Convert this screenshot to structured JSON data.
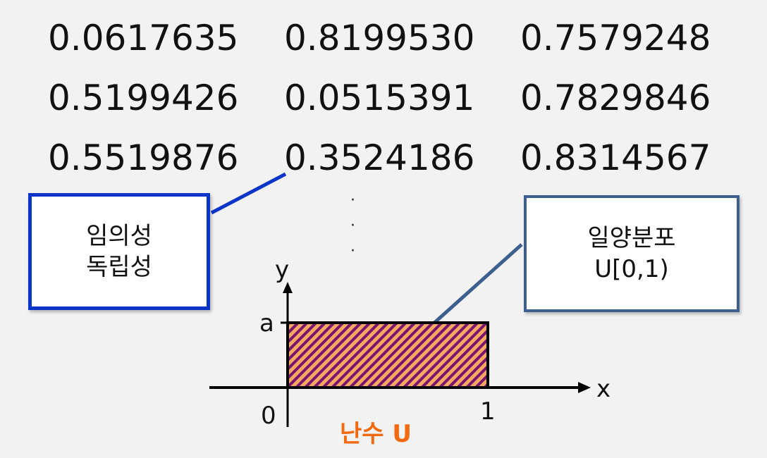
{
  "numbers": [
    [
      "0.0617635",
      "0.8199530",
      "0.7579248"
    ],
    [
      "0.5199426",
      "0.0515391",
      "0.7829846"
    ],
    [
      "0.5519876",
      "0.3524186",
      "0.8314567"
    ]
  ],
  "ellipsis": "·",
  "left_box": {
    "line1": "임의성",
    "line2": "독립성"
  },
  "right_box": {
    "line1": "일양분포",
    "line2": "U[0,1)"
  },
  "axes": {
    "y_label": "y",
    "x_label": "x",
    "a_label": "a",
    "zero_label": "0",
    "one_label": "1"
  },
  "caption": "난수 U",
  "colors": {
    "left_border": "#0a35c8",
    "right_border": "#3d5f8e",
    "fill": "#f4a860",
    "stripe": "#7a1470",
    "caption": "#f26a0f"
  }
}
